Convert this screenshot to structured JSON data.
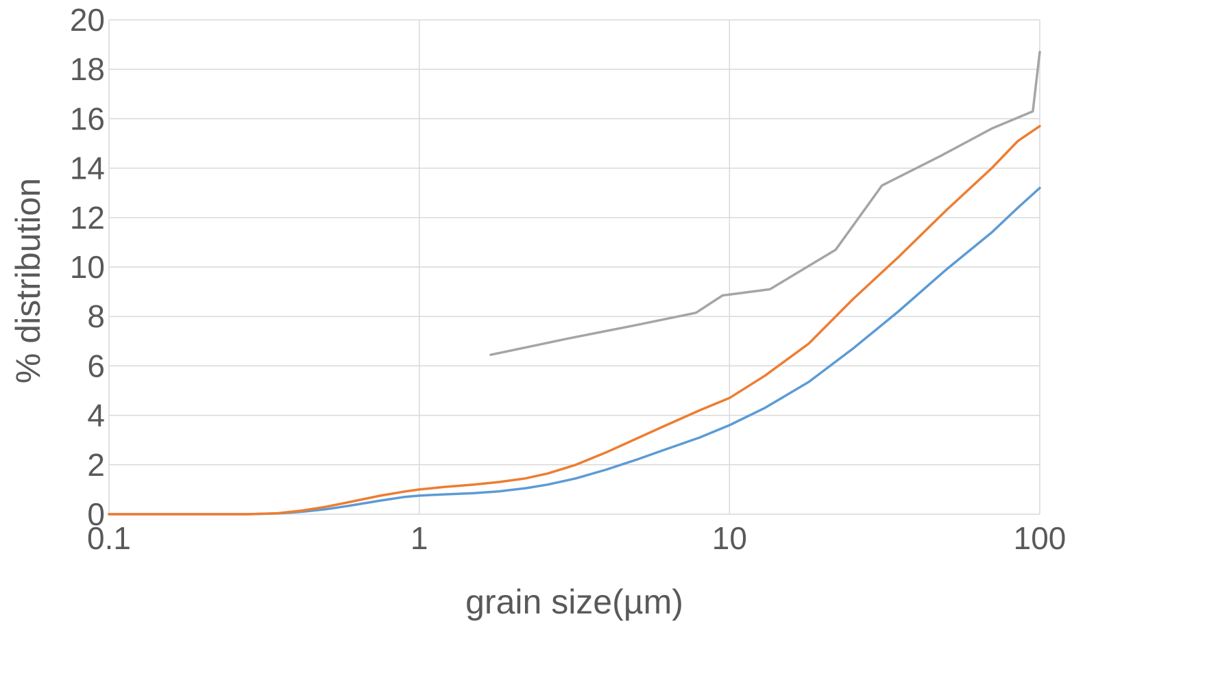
{
  "chart_data": {
    "type": "line",
    "title": "",
    "xlabel": "grain size(µm)",
    "ylabel": "% distribution",
    "x_scale": "log",
    "xlim": [
      0.1,
      100
    ],
    "ylim": [
      0,
      20
    ],
    "x_ticks": [
      0.1,
      1,
      10,
      100
    ],
    "x_tick_labels": [
      "0.1",
      "1",
      "10",
      "100"
    ],
    "y_ticks": [
      0,
      2,
      4,
      6,
      8,
      10,
      12,
      14,
      16,
      18,
      20
    ],
    "y_tick_labels": [
      "0",
      "2",
      "4",
      "6",
      "8",
      "10",
      "12",
      "14",
      "16",
      "18",
      "20"
    ],
    "grid": true,
    "legend": "none",
    "series": [
      {
        "color": "#5b9bd5",
        "x": [
          0.1,
          0.2,
          0.28,
          0.35,
          0.42,
          0.5,
          0.6,
          0.75,
          0.9,
          1,
          1.2,
          1.5,
          1.8,
          2.2,
          2.6,
          3.2,
          4,
          5,
          6,
          8,
          10,
          13,
          18,
          25,
          35,
          50,
          70,
          85,
          100
        ],
        "values": [
          0,
          0,
          0,
          0.03,
          0.1,
          0.2,
          0.35,
          0.55,
          0.7,
          0.75,
          0.8,
          0.85,
          0.92,
          1.05,
          1.2,
          1.45,
          1.8,
          2.2,
          2.55,
          3.1,
          3.6,
          4.3,
          5.35,
          6.7,
          8.2,
          9.9,
          11.4,
          12.4,
          13.2
        ]
      },
      {
        "color": "#ed7d31",
        "x": [
          0.1,
          0.2,
          0.28,
          0.35,
          0.42,
          0.5,
          0.6,
          0.75,
          0.9,
          1,
          1.2,
          1.5,
          1.8,
          2.2,
          2.6,
          3.2,
          4,
          5,
          6,
          8,
          10,
          13,
          18,
          25,
          35,
          50,
          70,
          85,
          100
        ],
        "values": [
          0,
          0,
          0,
          0.04,
          0.15,
          0.3,
          0.5,
          0.75,
          0.92,
          1,
          1.1,
          1.2,
          1.3,
          1.45,
          1.65,
          2,
          2.5,
          3.05,
          3.5,
          4.2,
          4.7,
          5.6,
          6.9,
          8.7,
          10.4,
          12.3,
          14,
          15.1,
          15.7
        ]
      },
      {
        "color": "#a5a5a5",
        "x": [
          1.7,
          3,
          5,
          7.8,
          9.5,
          13.5,
          22,
          31,
          48,
          70,
          95,
          100
        ],
        "values": [
          6.45,
          7.1,
          7.65,
          8.15,
          8.85,
          9.1,
          10.7,
          13.3,
          14.5,
          15.6,
          16.3,
          18.7
        ]
      }
    ]
  }
}
